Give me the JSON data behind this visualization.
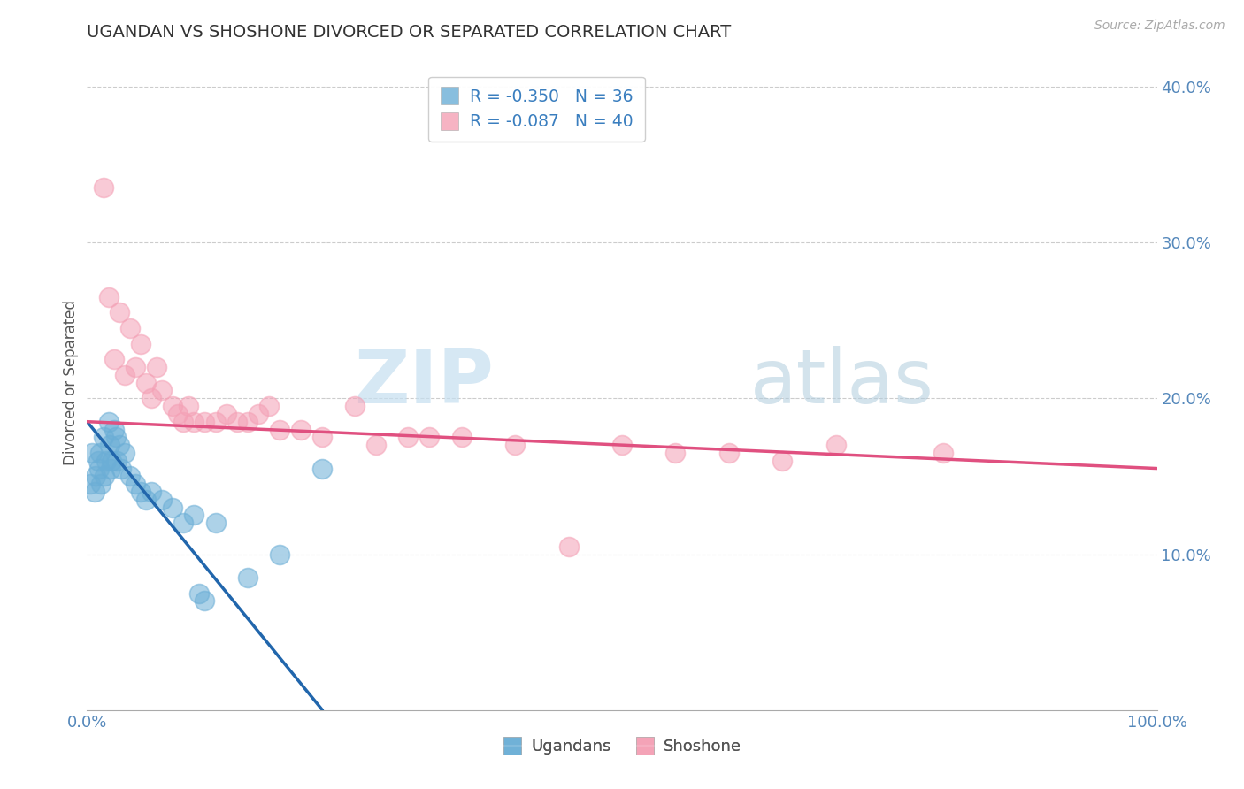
{
  "title": "UGANDAN VS SHOSHONE DIVORCED OR SEPARATED CORRELATION CHART",
  "source": "Source: ZipAtlas.com",
  "ylabel": "Divorced or Separated",
  "xlim": [
    0,
    100
  ],
  "ylim": [
    0,
    42
  ],
  "ugandan_color": "#6baed6",
  "shoshone_color": "#f4a0b5",
  "ugandan_line_color": "#2166ac",
  "shoshone_line_color": "#e05080",
  "ugandan_R": -0.35,
  "ugandan_N": 36,
  "shoshone_R": -0.087,
  "shoshone_N": 40,
  "legend_text_color": "#3a7ebf",
  "legend_label_ugandan": "Ugandans",
  "legend_label_shoshone": "Shoshone",
  "watermark_zip": "ZIP",
  "watermark_atlas": "atlas",
  "ugandan_scatter_x": [
    0.3,
    0.5,
    0.7,
    0.8,
    1.0,
    1.1,
    1.2,
    1.3,
    1.5,
    1.6,
    1.8,
    2.0,
    2.1,
    2.2,
    2.3,
    2.5,
    2.7,
    2.8,
    3.0,
    3.2,
    3.5,
    4.0,
    4.5,
    5.0,
    5.5,
    6.0,
    7.0,
    8.0,
    9.0,
    10.0,
    12.0,
    15.0,
    18.0,
    22.0,
    10.5,
    11.0
  ],
  "ugandan_scatter_y": [
    14.5,
    16.5,
    14.0,
    15.0,
    16.0,
    15.5,
    16.5,
    14.5,
    17.5,
    15.0,
    16.0,
    18.5,
    17.0,
    15.5,
    16.0,
    18.0,
    17.5,
    16.0,
    17.0,
    15.5,
    16.5,
    15.0,
    14.5,
    14.0,
    13.5,
    14.0,
    13.5,
    13.0,
    12.0,
    12.5,
    12.0,
    8.5,
    10.0,
    15.5,
    7.5,
    7.0
  ],
  "shoshone_scatter_x": [
    1.5,
    2.0,
    3.0,
    4.0,
    5.0,
    6.5,
    8.0,
    9.0,
    11.0,
    13.0,
    15.0,
    17.0,
    20.0,
    25.0,
    30.0,
    35.0,
    40.0,
    50.0,
    55.0,
    60.0,
    65.0,
    70.0,
    80.0,
    3.5,
    5.5,
    7.0,
    9.5,
    12.0,
    18.0,
    22.0,
    27.0,
    32.0,
    2.5,
    4.5,
    6.0,
    8.5,
    10.0,
    14.0,
    16.0,
    45.0
  ],
  "shoshone_scatter_y": [
    33.5,
    26.5,
    25.5,
    24.5,
    23.5,
    22.0,
    19.5,
    18.5,
    18.5,
    19.0,
    18.5,
    19.5,
    18.0,
    19.5,
    17.5,
    17.5,
    17.0,
    17.0,
    16.5,
    16.5,
    16.0,
    17.0,
    16.5,
    21.5,
    21.0,
    20.5,
    19.5,
    18.5,
    18.0,
    17.5,
    17.0,
    17.5,
    22.5,
    22.0,
    20.0,
    19.0,
    18.5,
    18.5,
    19.0,
    10.5
  ],
  "ugandan_line_x0": 0,
  "ugandan_line_y0": 18.5,
  "ugandan_line_x1": 22,
  "ugandan_line_y1": 0,
  "shoshone_line_x0": 0,
  "shoshone_line_y0": 18.5,
  "shoshone_line_x1": 100,
  "shoshone_line_y1": 15.5,
  "grid_color": "#cccccc",
  "ytick_positions": [
    0,
    10,
    20,
    30,
    40
  ],
  "ytick_labels": [
    "",
    "10.0%",
    "20.0%",
    "30.0%",
    "40.0%"
  ],
  "xtick_positions": [
    0,
    10,
    20,
    30,
    40,
    50,
    60,
    70,
    80,
    90,
    100
  ],
  "xtick_labels": [
    "0.0%",
    "",
    "",
    "",
    "",
    "",
    "",
    "",
    "",
    "",
    "100.0%"
  ]
}
